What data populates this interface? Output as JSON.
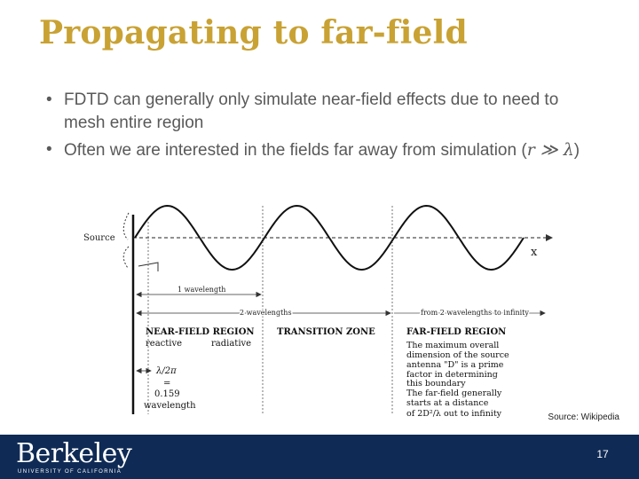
{
  "slide": {
    "title": "Propagating to far-field",
    "bullets": [
      {
        "text": "FDTD can generally only simulate near-field effects due to need to mesh entire region"
      },
      {
        "text_before": "Often we are interested in the fields far away from simulation (",
        "math": "r ≫ λ",
        "text_after": ")"
      }
    ],
    "source_credit": "Source: Wikipedia",
    "page_number": "17"
  },
  "footer": {
    "logo_text": "Berkeley",
    "logo_subtext": "UNIVERSITY OF CALIFORNIA",
    "background_color": "#0f2b55",
    "title_color": "#c9a234"
  },
  "figure": {
    "source_label": "Source",
    "axis_label": "x",
    "one_wavelength": "1 wavelength",
    "two_wavelengths": "2 wavelengths",
    "from_two_wavelengths": "from 2 wavelengths to infinity",
    "near_field_title": "NEAR-FIELD REGION",
    "reactive": "reactive",
    "radiative": "radiative",
    "transition_zone": "TRANSITION ZONE",
    "far_field_title": "FAR-FIELD REGION",
    "far_field_desc": [
      "The maximum overall",
      "dimension of the source",
      "antenna \"D\" is a prime",
      "factor in determining",
      "this boundary",
      "The far-field generally",
      "starts at a distance",
      "of 2D²/λ out to infinity"
    ],
    "lambda_label": "λ/2π",
    "equals": "=",
    "value_label": "0.159",
    "wavelength_word": "wavelength"
  }
}
